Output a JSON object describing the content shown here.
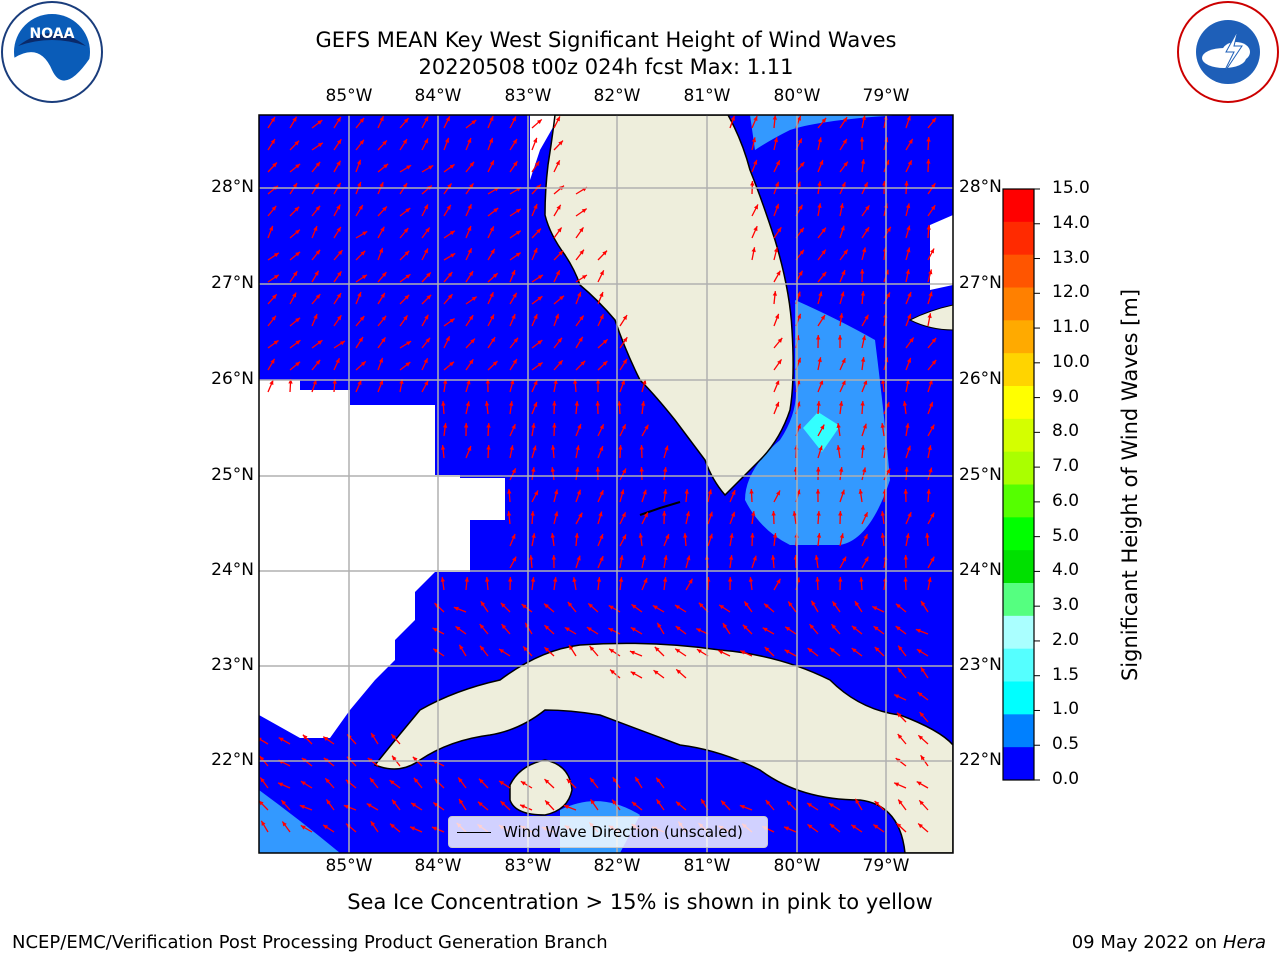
{
  "title": {
    "line1": "GEFS MEAN Key West Significant Height of Wind Waves",
    "line2": "20220508 t00z 024h fcst   Max: 1.11"
  },
  "map": {
    "lon_ticks": [
      "85°W",
      "84°W",
      "83°W",
      "82°W",
      "81°W",
      "80°W",
      "79°W"
    ],
    "lat_ticks": [
      "28°N",
      "27°N",
      "26°N",
      "25°N",
      "24°N",
      "23°N",
      "22°N"
    ],
    "legend_label": "Wind Wave Direction (unscaled)",
    "colors": {
      "ocean_low": "#0000ff",
      "ocean_mid": "#0080ff",
      "ocean_hi": "#00ffff",
      "land": "#eeeedc",
      "arrow": "#ff0000"
    }
  },
  "colorbar": {
    "label": "Significant Height of Wind Waves [m]",
    "ticks": [
      "15.0",
      "14.0",
      "13.0",
      "12.0",
      "11.0",
      "10.0",
      "9.0",
      "8.0",
      "7.0",
      "6.0",
      "5.0",
      "4.0",
      "3.0",
      "2.0",
      "1.5",
      "1.0",
      "0.5",
      "0.0"
    ],
    "colors": [
      "#ff0000",
      "#ff2a00",
      "#ff5500",
      "#ff8000",
      "#ffaa00",
      "#ffd400",
      "#ffff00",
      "#d4ff00",
      "#aaff00",
      "#55ff00",
      "#00ff00",
      "#00e000",
      "#55ff80",
      "#aaffff",
      "#55ffff",
      "#00ffff",
      "#0080ff",
      "#0000ff"
    ]
  },
  "footer": {
    "note": "Sea Ice Concentration > 15% is shown in pink to yellow",
    "left": "NCEP/EMC/Verification Post Processing Product Generation Branch",
    "right_date": "09 May 2022 on",
    "right_host": "Hera"
  },
  "logos": {
    "left": "noaa-logo",
    "right": "nws-logo"
  }
}
